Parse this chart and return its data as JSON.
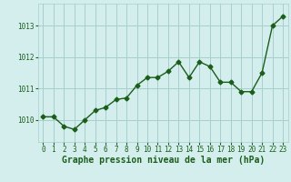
{
  "x": [
    0,
    1,
    2,
    3,
    4,
    5,
    6,
    7,
    8,
    9,
    10,
    11,
    12,
    13,
    14,
    15,
    16,
    17,
    18,
    19,
    20,
    21,
    22,
    23
  ],
  "y": [
    1010.1,
    1010.1,
    1009.8,
    1009.7,
    1010.0,
    1010.3,
    1010.4,
    1010.65,
    1010.7,
    1011.1,
    1011.35,
    1011.35,
    1011.55,
    1011.85,
    1011.35,
    1011.85,
    1011.7,
    1011.2,
    1011.2,
    1010.9,
    1010.9,
    1011.5,
    1013.0,
    1013.3
  ],
  "line_color": "#1a5e1a",
  "marker": "D",
  "marker_size": 2.5,
  "linewidth": 1.0,
  "bg_color": "#d4eeee",
  "grid_color": "#a8cece",
  "xlabel": "Graphe pression niveau de la mer (hPa)",
  "xlabel_color": "#1a5e1a",
  "xlabel_fontsize": 7,
  "tick_color": "#1a5e1a",
  "tick_fontsize": 5.5,
  "ylim": [
    1009.3,
    1013.7
  ],
  "yticks": [
    1010,
    1011,
    1012,
    1013
  ],
  "xlim": [
    -0.5,
    23.5
  ],
  "xticks": [
    0,
    1,
    2,
    3,
    4,
    5,
    6,
    7,
    8,
    9,
    10,
    11,
    12,
    13,
    14,
    15,
    16,
    17,
    18,
    19,
    20,
    21,
    22,
    23
  ]
}
